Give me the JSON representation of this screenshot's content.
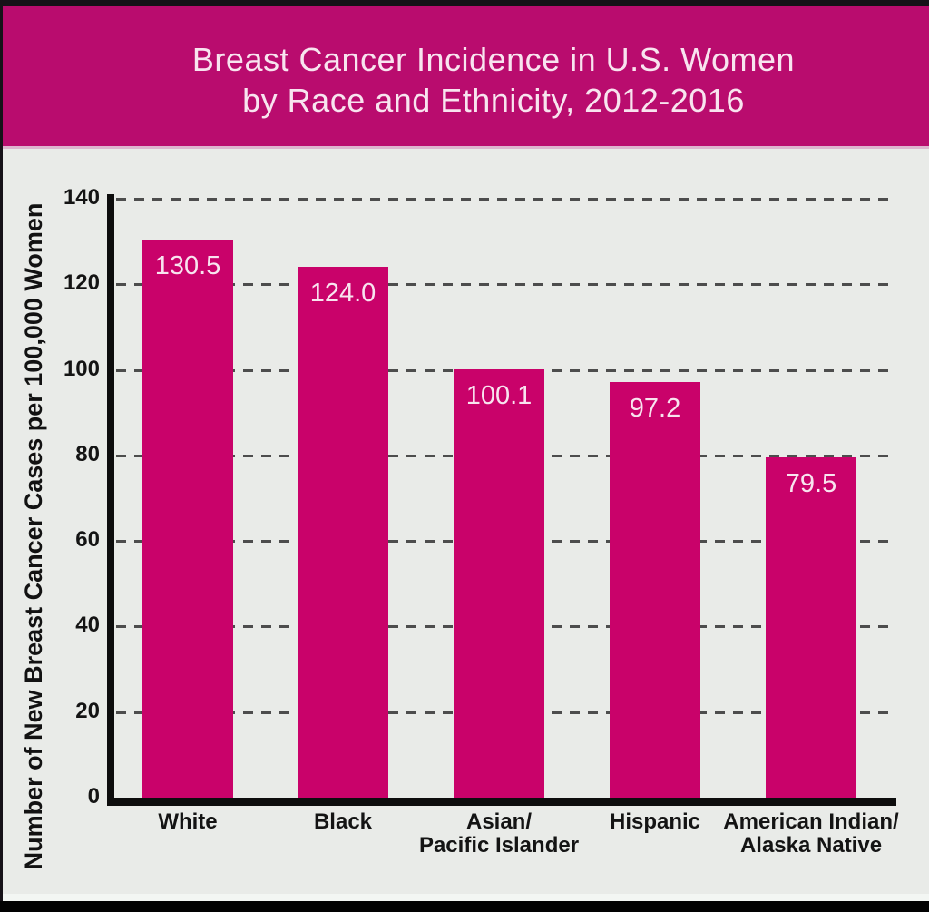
{
  "banner": {
    "title_line1": "Breast Cancer Incidence in U.S. Women",
    "title_line2": "by Race and Ethnicity, 2012-2016"
  },
  "chart_data": {
    "type": "bar",
    "title": "Breast Cancer Incidence in U.S. Women by Race and Ethnicity, 2012-2016",
    "categories": [
      "White",
      "Black",
      "Asian/\nPacific Islander",
      "Hispanic",
      "American Indian/\nAlaska Native"
    ],
    "values": [
      130.5,
      124.0,
      100.1,
      97.2,
      79.5
    ],
    "value_labels": [
      "130.5",
      "124.0",
      "100.1",
      "97.2",
      "79.5"
    ],
    "xlabel": "",
    "ylabel": "Number of New Breast Cancer Cases per 100,000 Women",
    "ylim": [
      0,
      140
    ],
    "yticks": [
      0,
      20,
      40,
      60,
      80,
      100,
      120,
      140
    ],
    "grid": "horizontal-dashed",
    "legend": "none",
    "colors": {
      "bar": "#c9026a",
      "banner_bg": "#b90c6e",
      "banner_text": "#f8e4ef",
      "chart_bg": "#e9ebe8",
      "axis": "#0d0d0d",
      "gridline": "#4d4d4d",
      "value_label_text": "#f8e4ef",
      "tick_label": "#141414"
    }
  }
}
